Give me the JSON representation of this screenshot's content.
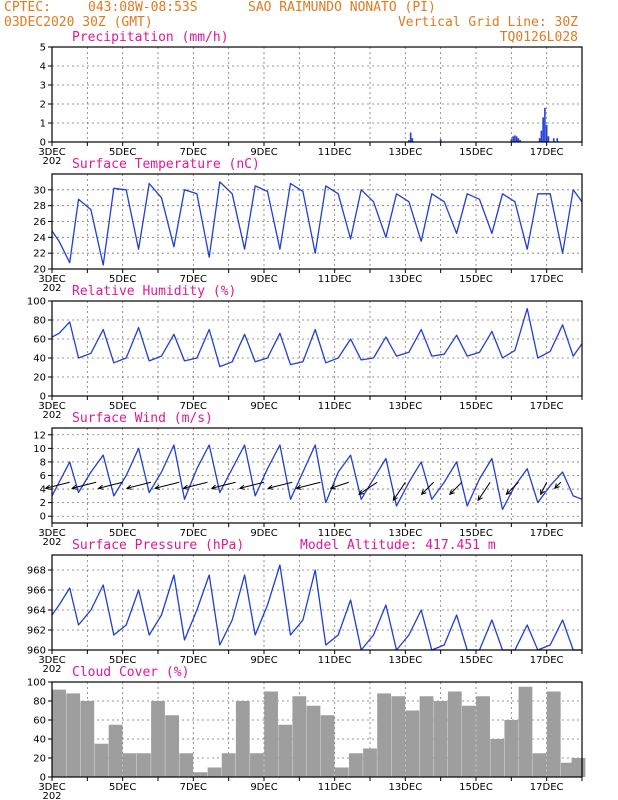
{
  "header": {
    "source": "CPTEC:",
    "coords": "043:08W-08:53S",
    "location": "SAO RAIMUNDO NONATO (PI)",
    "run": "03DEC2020 30Z (GMT)",
    "grid_note": "Vertical Grid Line: 30Z",
    "model_code": "TQ0126L028"
  },
  "x_axis": {
    "start_day": 3,
    "end_day": 18,
    "tick_labels": [
      "3DEC",
      "5DEC",
      "7DEC",
      "9DEC",
      "11DEC",
      "13DEC",
      "15DEC",
      "17DEC"
    ],
    "tick_days": [
      3,
      5,
      7,
      9,
      11,
      13,
      15,
      17
    ],
    "year_stub": "202"
  },
  "chart_data": [
    {
      "type": "bar",
      "title": "Precipitation (mm/h)",
      "ylim": [
        0,
        5
      ],
      "yticks": [
        0,
        1,
        2,
        3,
        4,
        5
      ],
      "color": "#1f3fd6",
      "x": [
        13.1,
        13.15,
        13.2,
        14.0,
        16.0,
        16.05,
        16.1,
        16.15,
        16.2,
        16.25,
        16.8,
        16.85,
        16.9,
        16.95,
        17.0,
        17.05,
        17.2,
        17.3
      ],
      "values": [
        0.1,
        0.5,
        0.2,
        0.15,
        0.15,
        0.3,
        0.35,
        0.3,
        0.2,
        0.1,
        0.2,
        0.6,
        1.3,
        1.8,
        0.9,
        0.3,
        0.2,
        0.2
      ]
    },
    {
      "type": "line",
      "title": "Surface Temperature (nC)",
      "ylim": [
        20,
        32
      ],
      "yticks": [
        20,
        22,
        24,
        26,
        28,
        30
      ],
      "color": "#1f3fd6",
      "x": [
        3.0,
        3.2,
        3.5,
        3.75,
        4.1,
        4.45,
        4.75,
        5.1,
        5.45,
        5.75,
        6.1,
        6.45,
        6.75,
        7.1,
        7.45,
        7.75,
        8.1,
        8.45,
        8.75,
        9.1,
        9.45,
        9.75,
        10.1,
        10.45,
        10.75,
        11.1,
        11.45,
        11.75,
        12.1,
        12.45,
        12.75,
        13.1,
        13.45,
        13.75,
        14.1,
        14.45,
        14.75,
        15.1,
        15.45,
        15.75,
        16.1,
        16.45,
        16.75,
        17.1,
        17.45,
        17.75,
        18.0
      ],
      "values": [
        24.8,
        23.5,
        20.8,
        28.8,
        27.5,
        20.5,
        30.2,
        30.0,
        22.5,
        30.8,
        29.0,
        22.8,
        30.0,
        29.5,
        21.5,
        31.0,
        29.5,
        22.5,
        30.5,
        29.8,
        22.5,
        30.8,
        29.8,
        22.0,
        30.5,
        29.5,
        23.8,
        30.0,
        28.5,
        24.0,
        29.5,
        28.5,
        23.5,
        29.5,
        28.5,
        24.5,
        29.5,
        28.8,
        24.5,
        29.5,
        28.5,
        22.5,
        29.5,
        29.5,
        22.0,
        30.0,
        28.5
      ]
    },
    {
      "type": "line",
      "title": "Relative Humidity (%)",
      "ylim": [
        0,
        100
      ],
      "yticks": [
        0,
        20,
        40,
        60,
        80,
        100
      ],
      "color": "#1f3fd6",
      "x": [
        3.0,
        3.2,
        3.5,
        3.75,
        4.1,
        4.45,
        4.75,
        5.1,
        5.45,
        5.75,
        6.1,
        6.45,
        6.75,
        7.1,
        7.45,
        7.75,
        8.1,
        8.45,
        8.75,
        9.1,
        9.45,
        9.75,
        10.1,
        10.45,
        10.75,
        11.1,
        11.45,
        11.75,
        12.1,
        12.45,
        12.75,
        13.1,
        13.45,
        13.75,
        14.1,
        14.45,
        14.75,
        15.1,
        15.45,
        15.75,
        16.1,
        16.45,
        16.75,
        17.1,
        17.45,
        17.75,
        18.0
      ],
      "values": [
        62,
        66,
        78,
        40,
        45,
        70,
        35,
        40,
        72,
        37,
        42,
        65,
        37,
        40,
        70,
        31,
        36,
        65,
        36,
        40,
        66,
        33,
        36,
        70,
        35,
        40,
        60,
        38,
        40,
        62,
        42,
        46,
        70,
        42,
        44,
        64,
        42,
        46,
        68,
        40,
        48,
        92,
        40,
        47,
        75,
        42,
        55
      ]
    },
    {
      "type": "line",
      "title": "Surface Wind (m/s)",
      "ylim": [
        -1,
        13
      ],
      "yticks": [
        0,
        2,
        4,
        6,
        8,
        10,
        12
      ],
      "color": "#1f3fd6",
      "x": [
        3.0,
        3.2,
        3.5,
        3.75,
        4.1,
        4.45,
        4.75,
        5.1,
        5.45,
        5.75,
        6.1,
        6.45,
        6.75,
        7.1,
        7.45,
        7.75,
        8.1,
        8.45,
        8.75,
        9.1,
        9.45,
        9.75,
        10.1,
        10.45,
        10.75,
        11.1,
        11.45,
        11.75,
        12.1,
        12.45,
        12.75,
        13.1,
        13.45,
        13.75,
        14.1,
        14.45,
        14.75,
        15.1,
        15.45,
        15.75,
        16.1,
        16.45,
        16.75,
        17.1,
        17.45,
        17.75,
        18.0
      ],
      "values": [
        3.0,
        5.0,
        8.0,
        3.5,
        6.5,
        9.0,
        3.0,
        6.0,
        10.0,
        3.5,
        6.5,
        10.5,
        2.5,
        7.0,
        10.5,
        3.5,
        7.0,
        10.5,
        3.0,
        7.0,
        10.5,
        2.5,
        6.5,
        10.5,
        2.0,
        6.5,
        9.0,
        2.5,
        5.5,
        8.5,
        1.5,
        5.0,
        8.0,
        2.5,
        5.0,
        8.0,
        1.5,
        5.5,
        8.5,
        1.0,
        4.5,
        7.0,
        2.0,
        4.5,
        6.5,
        3.0,
        2.5
      ],
      "vectors": {
        "x": [
          3.5,
          4.25,
          5.0,
          5.8,
          6.6,
          7.4,
          8.2,
          9.0,
          9.8,
          10.6,
          11.4,
          12.2,
          13.0,
          13.8,
          14.6,
          15.4,
          16.2,
          17.0,
          17.4
        ],
        "u": [
          -4,
          -4,
          -4,
          -4,
          -4,
          -4,
          -4,
          -4,
          -4,
          -4,
          -3,
          -3,
          -2,
          -2,
          -2,
          -2,
          -2,
          -1,
          -1
        ],
        "v": [
          -1,
          -1,
          -1,
          -1,
          -1,
          -1,
          -1,
          -1,
          -1,
          -1,
          -1,
          -2,
          -3,
          -2,
          -2,
          -3,
          -2,
          -2,
          -1
        ],
        "color": "#000000"
      }
    },
    {
      "type": "line",
      "title": "Surface Pressure (hPa)",
      "annotation": "Model Altitude: 417.451 m",
      "ylim": [
        960,
        969.5
      ],
      "yticks": [
        960,
        962,
        964,
        966,
        968
      ],
      "color": "#1f3fd6",
      "x": [
        3.0,
        3.2,
        3.5,
        3.75,
        4.1,
        4.45,
        4.75,
        5.1,
        5.45,
        5.75,
        6.1,
        6.45,
        6.75,
        7.1,
        7.45,
        7.75,
        8.1,
        8.45,
        8.75,
        9.1,
        9.45,
        9.75,
        10.1,
        10.45,
        10.75,
        11.1,
        11.45,
        11.75,
        12.1,
        12.45,
        12.75,
        13.1,
        13.45,
        13.75,
        14.1,
        14.45,
        14.75,
        15.1,
        15.45,
        15.75,
        16.1,
        16.45,
        16.75,
        17.1,
        17.45,
        17.75,
        18.0
      ],
      "values": [
        963.5,
        964.5,
        966.2,
        962.5,
        964.0,
        966.5,
        961.5,
        962.5,
        966.0,
        961.5,
        963.5,
        967.5,
        961.0,
        964.0,
        967.5,
        960.5,
        963.0,
        967.5,
        961.5,
        964.5,
        968.5,
        961.5,
        963.0,
        968.0,
        960.5,
        961.5,
        965.0,
        959.8,
        961.5,
        964.5,
        959.5,
        961.5,
        964.0,
        959.5,
        960.5,
        963.5,
        959.2,
        960.0,
        963.0,
        959.0,
        960.0,
        962.5,
        959.2,
        960.5,
        963.0,
        959.0,
        959.5
      ]
    },
    {
      "type": "bar",
      "title": "Cloud Cover (%)",
      "ylim": [
        0,
        100
      ],
      "yticks": [
        0,
        20,
        40,
        60,
        80,
        100
      ],
      "color": "#9e9e9e",
      "x": [
        3.2,
        3.6,
        4.0,
        4.4,
        4.8,
        5.2,
        5.6,
        6.0,
        6.4,
        6.8,
        7.2,
        7.6,
        8.0,
        8.4,
        8.8,
        9.2,
        9.6,
        10.0,
        10.4,
        10.8,
        11.2,
        11.6,
        12.0,
        12.4,
        12.8,
        13.2,
        13.6,
        14.0,
        14.4,
        14.8,
        15.2,
        15.6,
        16.0,
        16.4,
        16.8,
        17.2,
        17.6,
        17.9
      ],
      "values": [
        92,
        88,
        80,
        35,
        55,
        25,
        25,
        80,
        65,
        25,
        5,
        10,
        25,
        80,
        25,
        90,
        55,
        85,
        75,
        65,
        10,
        25,
        30,
        88,
        85,
        70,
        85,
        80,
        90,
        75,
        85,
        40,
        60,
        95,
        25,
        90,
        15,
        20
      ]
    }
  ]
}
